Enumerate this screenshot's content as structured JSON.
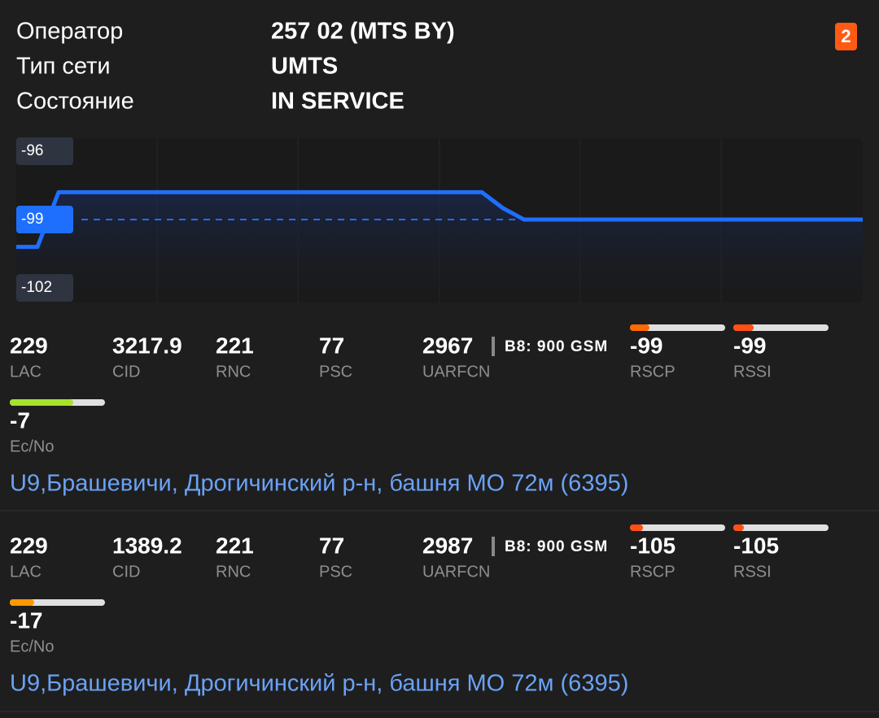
{
  "header": {
    "badge": "2",
    "rows": [
      {
        "label": "Оператор",
        "value": "257 02 (MTS BY)"
      },
      {
        "label": "Тип сети",
        "value": "UMTS"
      },
      {
        "label": "Состояние",
        "value": "IN SERVICE"
      }
    ]
  },
  "graph": {
    "type": "line",
    "color": "#1f6fff",
    "ylim": [
      -102.64,
      -95.43
    ],
    "yticks": [
      -96,
      -99,
      -102
    ],
    "current_tick": 1,
    "values": [
      -100.2,
      -100.2,
      -97.8,
      -97.8,
      -97.8,
      -97.8,
      -97.8,
      -97.8,
      -97.8,
      -97.8,
      -97.8,
      -97.8,
      -97.8,
      -97.8,
      -97.8,
      -97.8,
      -97.8,
      -97.8,
      -97.8,
      -97.8,
      -97.8,
      -97.8,
      -97.8,
      -98.5,
      -99,
      -99,
      -99,
      -99,
      -99,
      -99,
      -99,
      -99,
      -99,
      -99,
      -99,
      -99,
      -99,
      -99,
      -99,
      -99,
      -99
    ]
  },
  "cells": [
    {
      "fields": [
        {
          "value": "229",
          "label": "LAC"
        },
        {
          "value": "3217.9",
          "label": "CID"
        },
        {
          "value": "221",
          "label": "RNC"
        },
        {
          "value": "77",
          "label": "PSC"
        },
        {
          "value": "2967",
          "label": "UARFCN"
        },
        {
          "value": "-99",
          "label": "RSCP"
        },
        {
          "value": "-99",
          "label": "RSSI"
        },
        {
          "value": "-7",
          "label": "Ec/No"
        }
      ],
      "band": "B8: 900 GSM",
      "address": "U9,Брашевичи, Дрогичинский р-н, башня МО 72м (6395)"
    },
    {
      "fields": [
        {
          "value": "229",
          "label": "LAC"
        },
        {
          "value": "1389.2",
          "label": "CID"
        },
        {
          "value": "221",
          "label": "RNC"
        },
        {
          "value": "77",
          "label": "PSC"
        },
        {
          "value": "2987",
          "label": "UARFCN"
        },
        {
          "value": "-105",
          "label": "RSCP"
        },
        {
          "value": "-105",
          "label": "RSSI"
        },
        {
          "value": "-17",
          "label": "Ec/No"
        }
      ],
      "band": "B8: 900 GSM",
      "address": "U9,Брашевичи, Дрогичинский р-н, башня МО 72м (6395)"
    }
  ]
}
